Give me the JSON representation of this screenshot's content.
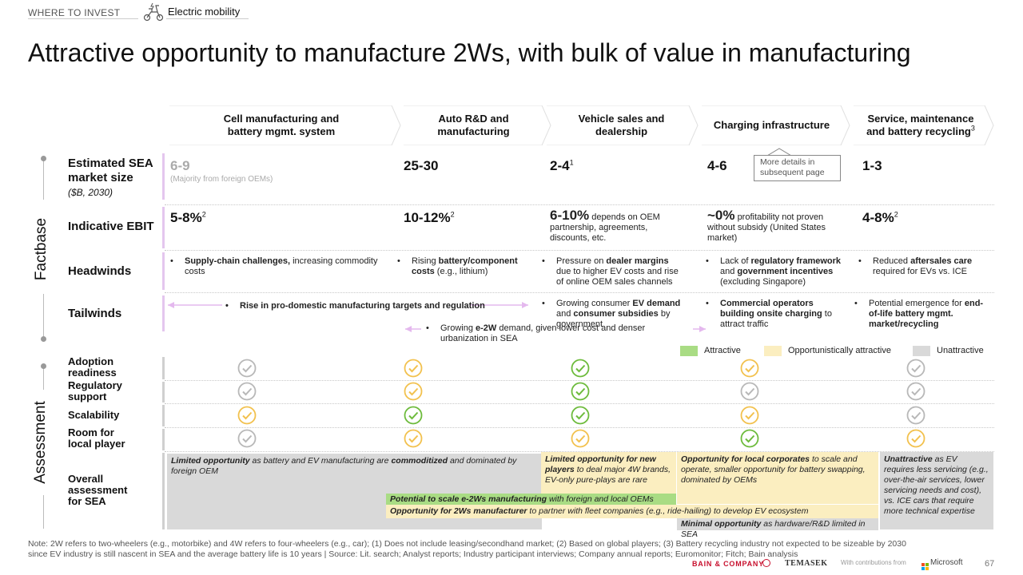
{
  "header": {
    "section": "WHERE TO INVEST",
    "topic": "Electric mobility"
  },
  "title": "Attractive opportunity to manufacture 2Ws, with bulk of value in manufacturing",
  "columns": [
    {
      "l1": "Cell manufacturing and",
      "l2": "battery mgmt. system"
    },
    {
      "l1": "Auto R&D and",
      "l2": "manufacturing"
    },
    {
      "l1": "Vehicle sales and",
      "l2": "dealership"
    },
    {
      "l1": "Charging infrastructure",
      "l2": ""
    },
    {
      "l1": "Service, maintenance",
      "l2": "and battery recycling",
      "sup": "3"
    }
  ],
  "side_labels": {
    "factbase": "Factbase",
    "assessment": "Assessment"
  },
  "rows": {
    "market_size": {
      "l1": "Estimated SEA",
      "l2": "market size",
      "sub": "($B, 2030)"
    },
    "ebit": "Indicative EBIT",
    "headwinds": "Headwinds",
    "tailwinds": "Tailwinds",
    "adoption": {
      "l1": "Adoption",
      "l2": "readiness"
    },
    "regulatory": {
      "l1": "Regulatory",
      "l2": "support"
    },
    "scalability": "Scalability",
    "room": {
      "l1": "Room for",
      "l2": "local player"
    },
    "overall": {
      "l1": "Overall",
      "l2": "assessment",
      "l3": "for SEA"
    }
  },
  "market_size": {
    "c1": "6-9",
    "c1_note": "(Majority from foreign OEMs)",
    "c2": "25-30",
    "c3": "2-4",
    "c3_sup": "1",
    "c4": "4-6",
    "c5": "1-3"
  },
  "callout": "More details in subsequent page",
  "ebit": {
    "c1": "5-8%",
    "c1_sup": "2",
    "c2": "10-12%",
    "c2_sup": "2",
    "c3": "6-10%",
    "c3_text": "depends on OEM partnership, agreements, discounts, etc.",
    "c4": "~0%",
    "c4_text": "profitability not proven without subsidy (United States market)",
    "c5": "4-8%",
    "c5_sup": "2"
  },
  "headwinds": {
    "c1_b": "Supply-chain challenges,",
    "c1_t": " increasing commodity costs",
    "c2_a": "Rising ",
    "c2_b": "battery/component costs",
    "c2_t": " (e.g., lithium)",
    "c3_a": "Pressure on ",
    "c3_b": "dealer margins",
    "c3_t": " due to higher EV costs and rise of online OEM sales channels",
    "c4_a": "Lack of ",
    "c4_b": "regulatory framework",
    "c4_m": " and ",
    "c4_b2": "government incentives",
    "c4_t": " (excluding Singapore)",
    "c5_a": "Reduced ",
    "c5_b": "aftersales care",
    "c5_t": " required for EVs vs. ICE"
  },
  "tailwinds": {
    "span1": "Rise in pro-domestic manufacturing targets and regulation",
    "c3_a": "Growing consumer ",
    "c3_b": "EV demand",
    "c3_m": " and ",
    "c3_b2": "consumer subsidies",
    "c3_t": " by government",
    "span2_a": "Growing ",
    "span2_b": "e-2W",
    "span2_t": " demand, given lower cost and denser urbanization in SEA",
    "c4_b": "Commercial operators building onsite charging",
    "c4_t": " to attract traffic",
    "c5_a": "Potential emergence for ",
    "c5_b": "end-of-life battery mgmt. market/recycling"
  },
  "legend": [
    {
      "label": "Attractive",
      "color": "#a9dc84"
    },
    {
      "label": "Opportunistically attractive",
      "color": "#fbeec0"
    },
    {
      "label": "Unattractive",
      "color": "#d9d9d9"
    }
  ],
  "ratings": [
    [
      "Unattractive",
      "Opportunistically attractive",
      "Attractive",
      "Opportunistically attractive",
      "Unattractive"
    ],
    [
      "Unattractive",
      "Opportunistically attractive",
      "Attractive",
      "Unattractive",
      "Unattractive"
    ],
    [
      "Opportunistically attractive",
      "Attractive",
      "Attractive",
      "Opportunistically attractive",
      "Unattractive"
    ],
    [
      "Unattractive",
      "Opportunistically attractive",
      "Opportunistically attractive",
      "Attractive",
      "Opportunistically attractive"
    ]
  ],
  "overall": {
    "a_b": "Limited opportunity",
    "a_m": " as battery and EV manufacturing are ",
    "a_b2": "commoditized",
    "a_t": " and dominated by foreign OEM",
    "b_b": "Limited opportunity for new players",
    "b_t": " to deal major 4W brands, EV-only pure-plays are rare",
    "c_b": "Opportunity for local corporates",
    "c_t": " to scale and operate, smaller opportunity for battery swapping, dominated by OEMs",
    "d_b": "Unattractive",
    "d_t": " as EV requires less servicing (e.g., over-the-air services, lower servicing needs and cost), vs. ICE cars that require more technical expertise",
    "e_b": "Potential to scale e-2Ws manufacturing",
    "e_t": " with foreign and local OEMs",
    "f_b": "Opportunity for 2Ws manufacturer",
    "f_t": " to partner with fleet companies (e.g., ride-hailing) to develop EV ecosystem",
    "g_b": "Minimal opportunity",
    "g_t": " as hardware/R&D limited in SEA"
  },
  "footnote": "Note: 2W refers to two-wheelers (e.g., motorbike) and 4W refers to four-wheelers (e.g., car); (1) Does not include leasing/secondhand market; (2) Based on global players; (3) Battery recycling industry not expected to be sizeable by 2030 since EV industry is still nascent in SEA and the average battery life is 10 years | Source: Lit. search; Analyst reports; Industry participant interviews; Company annual reports; Euromonitor; Fitch; Bain analysis",
  "footer": {
    "bain": "BAIN & COMPANY",
    "temasek": "TEMASEK",
    "contrib": "With contributions from",
    "microsoft": "Microsoft",
    "page": "67"
  }
}
